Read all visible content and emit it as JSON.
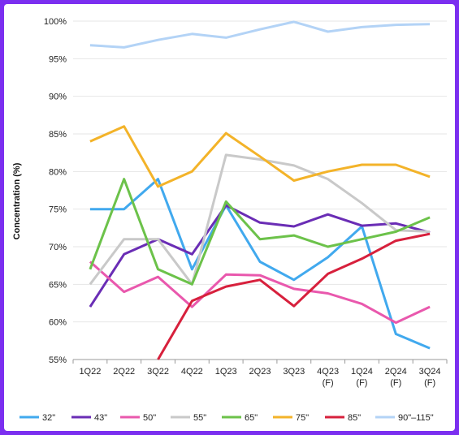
{
  "chart_data": {
    "type": "line",
    "title": "",
    "xlabel": "",
    "ylabel": "Concentration (%)",
    "ylim": [
      55,
      100
    ],
    "yticks": [
      "55%",
      "60%",
      "65%",
      "70%",
      "75%",
      "80%",
      "85%",
      "90%",
      "95%",
      "100%"
    ],
    "categories": [
      [
        "1Q22"
      ],
      [
        "2Q22"
      ],
      [
        "3Q22"
      ],
      [
        "4Q22"
      ],
      [
        "1Q23"
      ],
      [
        "2Q23"
      ],
      [
        "3Q23"
      ],
      [
        "4Q23",
        "(F)"
      ],
      [
        "1Q24",
        "(F)"
      ],
      [
        "2Q24",
        "(F)"
      ],
      [
        "3Q24",
        "(F)"
      ]
    ],
    "grid": true,
    "legend": "bottom",
    "series": [
      {
        "name": "32\"",
        "color": "#41a9ee",
        "values": [
          75,
          75,
          79,
          67,
          75.5,
          68,
          65.6,
          68.6,
          72.7,
          58.4,
          56.5
        ]
      },
      {
        "name": "43\"",
        "color": "#6a2db5",
        "values": [
          62,
          69,
          71,
          69,
          75.5,
          73.2,
          72.7,
          74.3,
          72.8,
          73.1,
          71.9
        ]
      },
      {
        "name": "50\"",
        "color": "#e958ad",
        "values": [
          68,
          64,
          66,
          62,
          66.3,
          66.2,
          64.4,
          63.8,
          62.4,
          59.9,
          62
        ]
      },
      {
        "name": "55\"",
        "color": "#c9c9c9",
        "values": [
          65,
          71,
          71,
          65,
          82.2,
          81.6,
          80.8,
          79,
          75.8,
          72.2,
          72
        ]
      },
      {
        "name": "65\"",
        "color": "#6cc24a",
        "values": [
          67,
          79,
          67,
          65,
          76,
          71,
          71.5,
          70,
          71,
          72,
          73.9
        ]
      },
      {
        "name": "75\"",
        "color": "#f3b329",
        "values": [
          84,
          86,
          78,
          80,
          85.1,
          82,
          78.8,
          80,
          80.9,
          80.9,
          79.3
        ]
      },
      {
        "name": "85\"",
        "color": "#d7203c",
        "values": [
          null,
          null,
          55,
          62.8,
          64.7,
          65.6,
          62.1,
          66.4,
          68.4,
          70.8,
          71.7
        ]
      },
      {
        "name": "90\"–115\"",
        "color": "#b3d3f6",
        "values": [
          96.8,
          96.5,
          97.5,
          98.3,
          97.8,
          98.9,
          99.9,
          98.6,
          99.2,
          99.5,
          99.6
        ]
      }
    ]
  }
}
